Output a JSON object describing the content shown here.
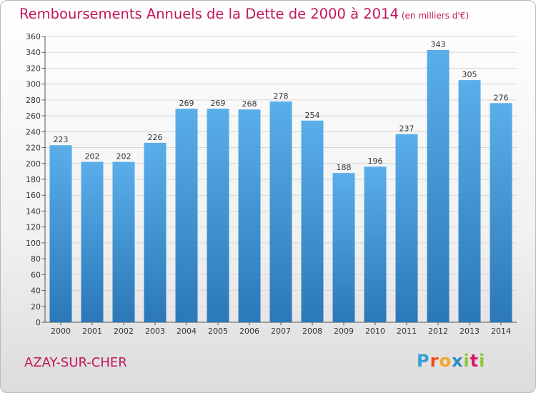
{
  "title": "Remboursements Annuels de la Dette de 2000 à 2014",
  "subtitle": "(en milliers d'€)",
  "city": "AZAY-SUR-CHER",
  "logo": {
    "letters": [
      "P",
      "r",
      "o",
      "x",
      "i",
      "t",
      "i"
    ],
    "colors": [
      "#3a9fd8",
      "#e94e1b",
      "#f5a623",
      "#2e8bc0",
      "#8cc63f",
      "#d81b60",
      "#8cc63f"
    ]
  },
  "colors": {
    "bar_top": "#5aaeea",
    "bar_bottom": "#2b78b8",
    "title": "#c2185b"
  },
  "chart_data": {
    "type": "bar",
    "title": "Remboursements Annuels de la Dette de 2000 à 2014",
    "categories": [
      "2000",
      "2001",
      "2002",
      "2003",
      "2004",
      "2005",
      "2006",
      "2007",
      "2008",
      "2009",
      "2010",
      "2011",
      "2012",
      "2013",
      "2014"
    ],
    "values": [
      223,
      202,
      202,
      226,
      269,
      269,
      268,
      278,
      254,
      188,
      196,
      237,
      343,
      305,
      276
    ],
    "ylim": [
      0,
      360
    ],
    "yticks": [
      0,
      20,
      40,
      60,
      80,
      100,
      120,
      140,
      160,
      180,
      200,
      220,
      240,
      260,
      280,
      300,
      320,
      340,
      360
    ],
    "grid": true,
    "xlabel": "",
    "ylabel": ""
  }
}
